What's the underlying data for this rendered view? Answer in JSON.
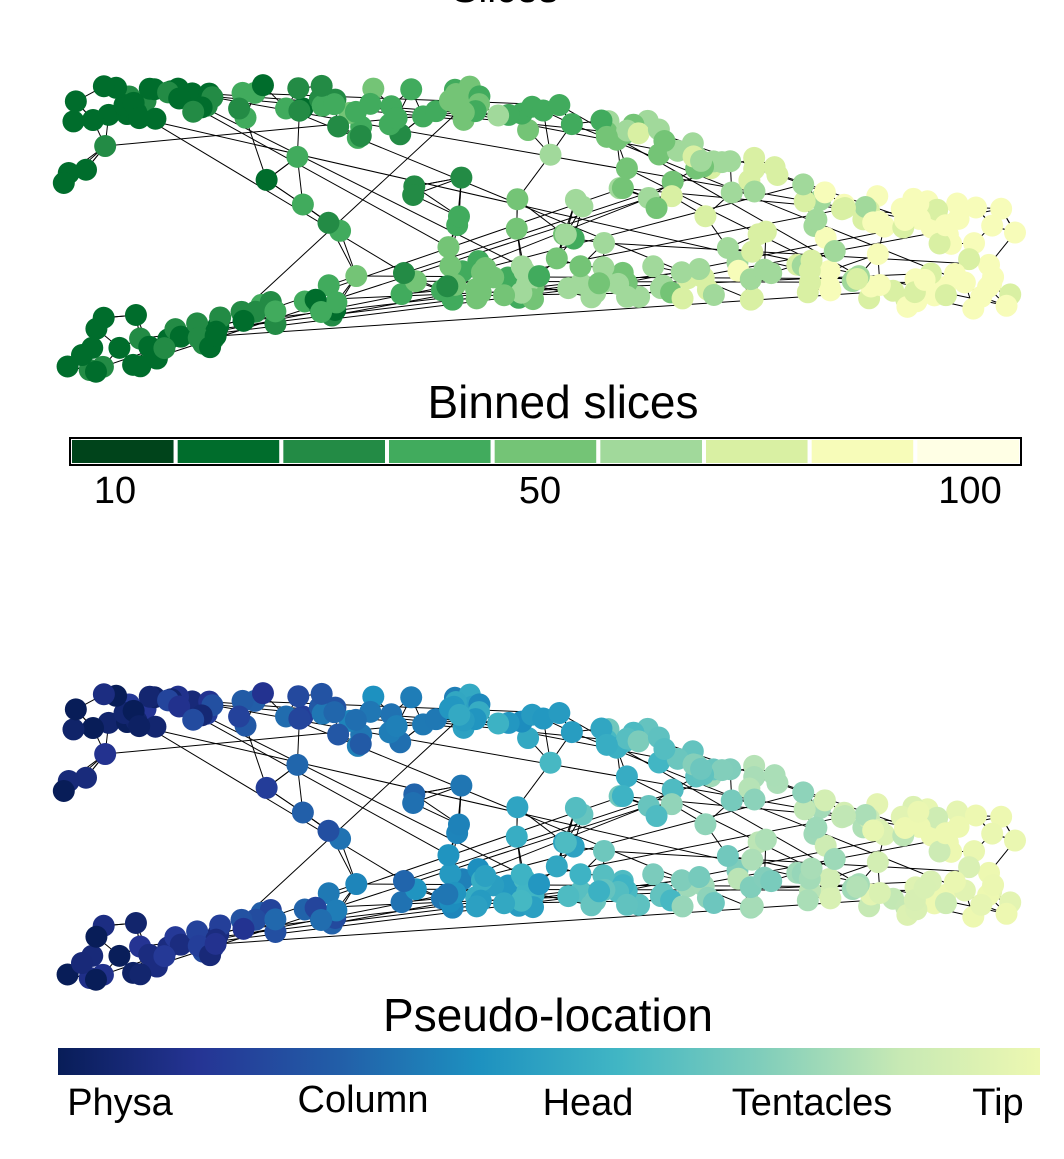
{
  "title": "Slices",
  "panels": [
    {
      "colorbar_title": "Binned slices",
      "colorbar_colors": [
        "#00441b",
        "#006d2c",
        "#238b45",
        "#41ab5d",
        "#74c476",
        "#a1d99b",
        "#d9f0a3",
        "#f7fcb9",
        "#ffffe5"
      ],
      "colorbar_labels": [
        "10",
        "50",
        "100"
      ]
    },
    {
      "colorbar_title": "Pseudo-location",
      "colorbar_colors": [
        "#081d58",
        "#253494",
        "#225ea8",
        "#1d91c0",
        "#41b6c4",
        "#7fcdbb",
        "#c7e9b4",
        "#edf8b1"
      ],
      "colorbar_labels": [
        "Physa",
        "Column",
        "Head",
        "Tentacles",
        "Tip"
      ]
    }
  ]
}
